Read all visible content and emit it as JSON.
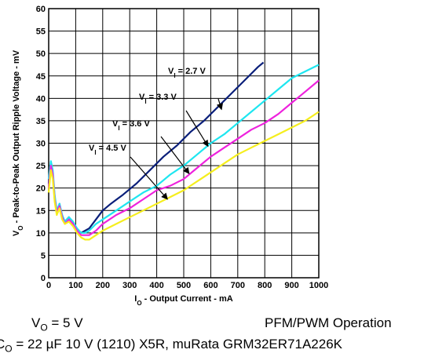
{
  "chart_data": {
    "type": "line",
    "xlabel": "I_O - Output Current - mA",
    "ylabel": "V_O - Peak-to-Peak Output Ripple Voltage - mV",
    "xlim": [
      0,
      1000
    ],
    "ylim": [
      0,
      60
    ],
    "xticks": [
      0,
      100,
      200,
      300,
      400,
      500,
      600,
      700,
      800,
      900,
      1000
    ],
    "yticks": [
      0,
      5,
      10,
      15,
      20,
      25,
      30,
      35,
      40,
      45,
      50,
      55,
      60
    ],
    "grid": true,
    "series": [
      {
        "name": "V_I = 2.7 V",
        "color": "#0a1f7a",
        "x": [
          0,
          8,
          15,
          22,
          30,
          40,
          50,
          60,
          75,
          90,
          105,
          120,
          135,
          150,
          175,
          200,
          230,
          275,
          325,
          375,
          425,
          475,
          525,
          575,
          625,
          675,
          725,
          775,
          795
        ],
        "y": [
          21,
          25,
          23,
          18,
          14.5,
          16.5,
          13.5,
          12.5,
          13.5,
          12,
          10.5,
          10,
          10.5,
          11,
          13,
          15,
          16.5,
          18.5,
          21,
          24,
          27,
          29.5,
          32.5,
          35,
          38,
          41,
          44,
          47,
          48
        ]
      },
      {
        "name": "V_I = 3.3 V",
        "color": "#1ee6f0",
        "x": [
          0,
          8,
          15,
          22,
          30,
          40,
          50,
          60,
          75,
          90,
          105,
          120,
          135,
          150,
          175,
          200,
          250,
          300,
          350,
          400,
          450,
          500,
          550,
          600,
          650,
          700,
          750,
          800,
          850,
          900,
          950,
          1000
        ],
        "y": [
          22,
          26,
          24,
          18.5,
          15,
          16.5,
          14,
          12.5,
          13.5,
          12.5,
          11,
          10,
          10,
          10.5,
          12,
          13,
          15,
          17,
          19,
          20.5,
          23,
          25,
          27.5,
          30,
          32,
          34.5,
          37,
          39.5,
          42,
          44.5,
          46,
          47.5
        ]
      },
      {
        "name": "V_I = 3.6 V",
        "color": "#ee22dd",
        "x": [
          0,
          8,
          15,
          22,
          30,
          40,
          50,
          60,
          75,
          90,
          105,
          120,
          135,
          150,
          175,
          200,
          250,
          300,
          350,
          400,
          450,
          500,
          550,
          600,
          650,
          700,
          750,
          800,
          850,
          900,
          950,
          1000
        ],
        "y": [
          20,
          25,
          23,
          17.5,
          14.5,
          16,
          13.5,
          12,
          13,
          12,
          10.5,
          9.5,
          9.5,
          9.5,
          10.5,
          12,
          14,
          15.5,
          17.5,
          19.5,
          20.5,
          22,
          24.5,
          27,
          29,
          31,
          33,
          34.5,
          36.5,
          39,
          41.5,
          44
        ]
      },
      {
        "name": "V_I = 4.5 V",
        "color": "#f5ee1e",
        "x": [
          0,
          8,
          15,
          22,
          30,
          40,
          50,
          60,
          75,
          90,
          105,
          120,
          135,
          150,
          175,
          200,
          250,
          300,
          350,
          400,
          450,
          500,
          550,
          600,
          650,
          700,
          750,
          800,
          850,
          900,
          950,
          1000
        ],
        "y": [
          19,
          24,
          22,
          17,
          14,
          15.5,
          13,
          12,
          12.5,
          11.5,
          10,
          9,
          8.5,
          8.5,
          9.5,
          10.5,
          12,
          13.5,
          15,
          16.5,
          18,
          19.5,
          21.5,
          23.5,
          25.5,
          27.5,
          29,
          30.5,
          32,
          33.5,
          35,
          37
        ]
      }
    ],
    "annotations": [
      {
        "text": "V_I = 2.7 V",
        "series": 0
      },
      {
        "text": "V_I = 3.3 V",
        "series": 1
      },
      {
        "text": "V_I = 3.6 V",
        "series": 2
      },
      {
        "text": "V_I = 4.5 V",
        "series": 3
      }
    ]
  },
  "notes": {
    "vo_text": "V_O = 5 V",
    "mode_text": "PFM/PWM Operation",
    "cap_text": "C_O = 22 µF 10 V (1210) X5R, muRata GRM32ER71A226K"
  }
}
